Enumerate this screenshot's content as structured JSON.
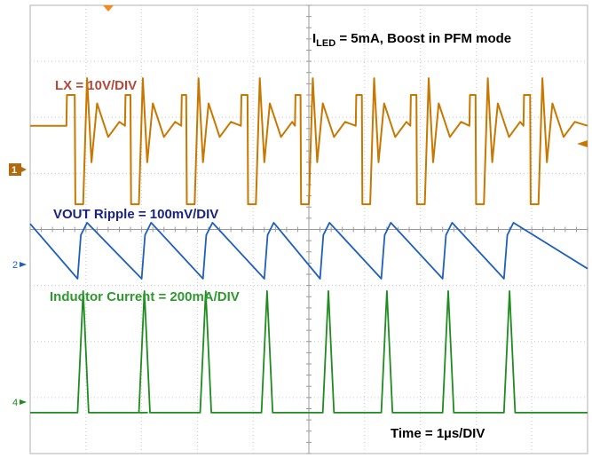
{
  "chart_data": {
    "type": "line",
    "title_main": "I",
    "title_sub": "LED",
    "title_rest": " = 5mA, Boost in PFM mode",
    "time_label": "Time = 1µs/DIV",
    "grid": true,
    "divisions": {
      "x": 10,
      "y": 8
    },
    "channel_markers": [
      "1",
      "2",
      "4"
    ],
    "series": [
      {
        "name": "LX = 10V/DIV",
        "color": "#c87800",
        "label_color": "#b5473a",
        "x": [
          0.0,
          0.65,
          0.66,
          0.8,
          0.81,
          0.95,
          1.02,
          1.1,
          1.2,
          1.4,
          1.6,
          1.7,
          1.71,
          1.8,
          1.81,
          1.95,
          2.02,
          2.1,
          2.2,
          2.4,
          2.6,
          2.71,
          2.72,
          2.8,
          2.81,
          2.95,
          3.02,
          3.1,
          3.2,
          3.4,
          3.6,
          3.78,
          3.79,
          3.9,
          3.91,
          4.05,
          4.12,
          4.2,
          4.3,
          4.5,
          4.7,
          4.75,
          4.76,
          4.85,
          4.86,
          5.0,
          5.07,
          5.15,
          5.25,
          5.45,
          5.65,
          5.84,
          5.85,
          5.95,
          5.96,
          6.1,
          6.17,
          6.25,
          6.35,
          6.55,
          6.75,
          6.82,
          6.83,
          6.93,
          6.94,
          7.08,
          7.15,
          7.23,
          7.33,
          7.53,
          7.73,
          7.88,
          7.89,
          7.99,
          8.0,
          8.14,
          8.21,
          8.29,
          8.39,
          8.59,
          8.79,
          8.85,
          8.86,
          8.97,
          8.98,
          9.12,
          9.19,
          9.27,
          9.37,
          9.57,
          9.77,
          10.0
        ],
        "y": [
          5.85,
          5.85,
          6.4,
          6.4,
          4.45,
          4.45,
          6.7,
          5.2,
          6.25,
          5.65,
          5.92,
          5.85,
          6.4,
          6.4,
          4.45,
          4.45,
          6.7,
          5.2,
          6.25,
          5.65,
          5.92,
          5.85,
          6.4,
          6.4,
          4.45,
          4.45,
          6.7,
          5.2,
          6.25,
          5.65,
          5.92,
          5.85,
          6.4,
          6.4,
          4.45,
          4.45,
          6.7,
          5.2,
          6.25,
          5.65,
          5.92,
          5.85,
          6.4,
          6.4,
          4.45,
          4.45,
          6.7,
          5.2,
          6.25,
          5.65,
          5.92,
          5.85,
          6.4,
          6.4,
          4.45,
          4.45,
          6.7,
          5.2,
          6.25,
          5.65,
          5.92,
          5.85,
          6.4,
          6.4,
          4.45,
          4.45,
          6.7,
          5.2,
          6.25,
          5.65,
          5.92,
          5.85,
          6.4,
          6.4,
          4.45,
          4.45,
          6.7,
          5.2,
          6.25,
          5.65,
          5.92,
          5.85,
          6.4,
          6.4,
          4.45,
          4.45,
          6.7,
          5.2,
          6.25,
          5.65,
          5.92,
          5.85
        ]
      },
      {
        "name": "VOUT Ripple = 100mV/DIV",
        "color": "#1f5fbf",
        "label_color": "#1a237e",
        "x": [
          0.0,
          0.85,
          0.91,
          1.02,
          2.0,
          2.06,
          2.17,
          3.1,
          3.16,
          3.27,
          4.2,
          4.26,
          4.37,
          5.2,
          5.26,
          5.37,
          6.3,
          6.36,
          6.47,
          7.4,
          7.46,
          7.57,
          8.5,
          8.56,
          8.67,
          10.0
        ],
        "y": [
          4.1,
          3.12,
          3.9,
          4.12,
          3.12,
          3.9,
          4.12,
          3.12,
          3.9,
          4.12,
          3.12,
          3.9,
          4.12,
          3.12,
          3.9,
          4.12,
          3.12,
          3.9,
          4.12,
          3.12,
          3.9,
          4.12,
          3.12,
          3.9,
          4.12,
          3.3
        ]
      },
      {
        "name": "Inductor Current = 200mA/DIV",
        "color": "#1e8c1e",
        "label_color": "#2e9a2e",
        "x": [
          0.0,
          0.6,
          0.85,
          0.95,
          1.05,
          2.1,
          1.95,
          2.05,
          2.15,
          3.0,
          3.05,
          3.15,
          3.25,
          4.1,
          4.15,
          4.25,
          4.35,
          5.2,
          5.25,
          5.35,
          5.45,
          6.25,
          6.3,
          6.4,
          6.5,
          7.35,
          7.4,
          7.5,
          7.6,
          8.45,
          8.5,
          8.6,
          8.7,
          10.0
        ],
        "y": [
          0.73,
          0.73,
          0.73,
          2.9,
          0.73,
          0.73,
          0.73,
          2.9,
          0.73,
          0.73,
          0.73,
          2.9,
          0.73,
          0.73,
          0.73,
          2.9,
          0.73,
          0.73,
          0.73,
          2.9,
          0.73,
          0.73,
          0.73,
          2.9,
          0.73,
          0.73,
          0.73,
          2.9,
          0.73,
          0.73,
          0.73,
          2.9,
          0.73,
          0.73
        ]
      }
    ]
  }
}
